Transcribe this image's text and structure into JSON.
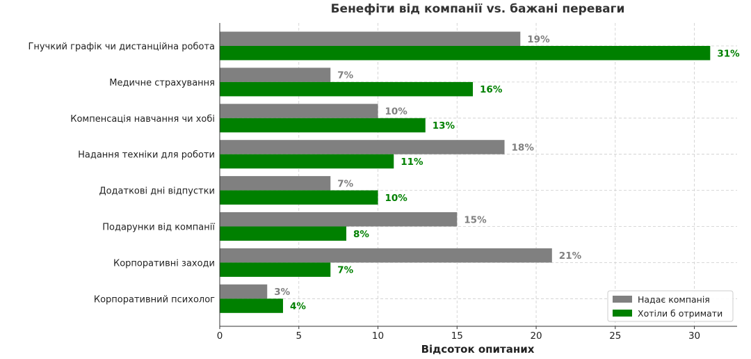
{
  "chart_data": {
    "type": "bar",
    "orientation": "horizontal",
    "title": "Бенефіти від компанії vs. бажані переваги",
    "xlabel": "Відсоток опитаних",
    "ylabel": "",
    "xlim": [
      0,
      32.7
    ],
    "xticks": [
      0,
      5,
      10,
      15,
      20,
      25,
      30
    ],
    "categories": [
      "Гнучкий графік чи дистанційна робота",
      "Медичне страхування",
      "Компенсація навчання чи хобі",
      "Надання техніки для роботи",
      "Додаткові дні відпустки",
      "Подарунки від компанії",
      "Корпоративні заходи",
      "Корпоративний психолог"
    ],
    "series": [
      {
        "name": "Надає компанія",
        "color": "#808080",
        "values": [
          19,
          7,
          10,
          18,
          7,
          15,
          21,
          3
        ],
        "labels": [
          "19%",
          "7%",
          "10%",
          "18%",
          "7%",
          "15%",
          "21%",
          "3%"
        ]
      },
      {
        "name": "Хотіли б отримати",
        "color": "#008000",
        "values": [
          31,
          16,
          13,
          11,
          10,
          8,
          7,
          4
        ],
        "labels": [
          "31%",
          "16%",
          "13%",
          "11%",
          "10%",
          "8%",
          "7%",
          "4%"
        ]
      }
    ],
    "grid": true,
    "legend_position": "bottom-right"
  }
}
